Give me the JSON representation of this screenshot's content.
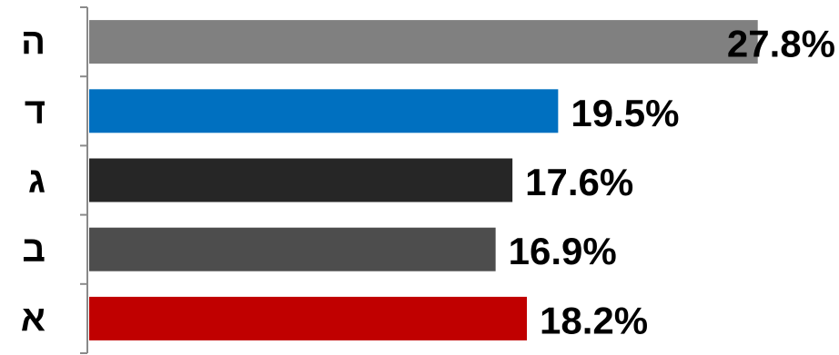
{
  "chart_data": {
    "type": "bar",
    "orientation": "horizontal",
    "categories": [
      "ה",
      "ד",
      "ג",
      "ב",
      "א"
    ],
    "values": [
      27.8,
      19.5,
      17.6,
      16.9,
      18.2
    ],
    "value_labels": [
      "27.8%",
      "19.5%",
      "17.6%",
      "16.9%",
      "18.2%"
    ],
    "bar_colors": [
      "#808080",
      "#0070c0",
      "#262626",
      "#4d4d4d",
      "#c00000"
    ],
    "title": "",
    "xlabel": "",
    "ylabel": "",
    "xlim": [
      0,
      28
    ],
    "grid": false,
    "legend": "none"
  }
}
